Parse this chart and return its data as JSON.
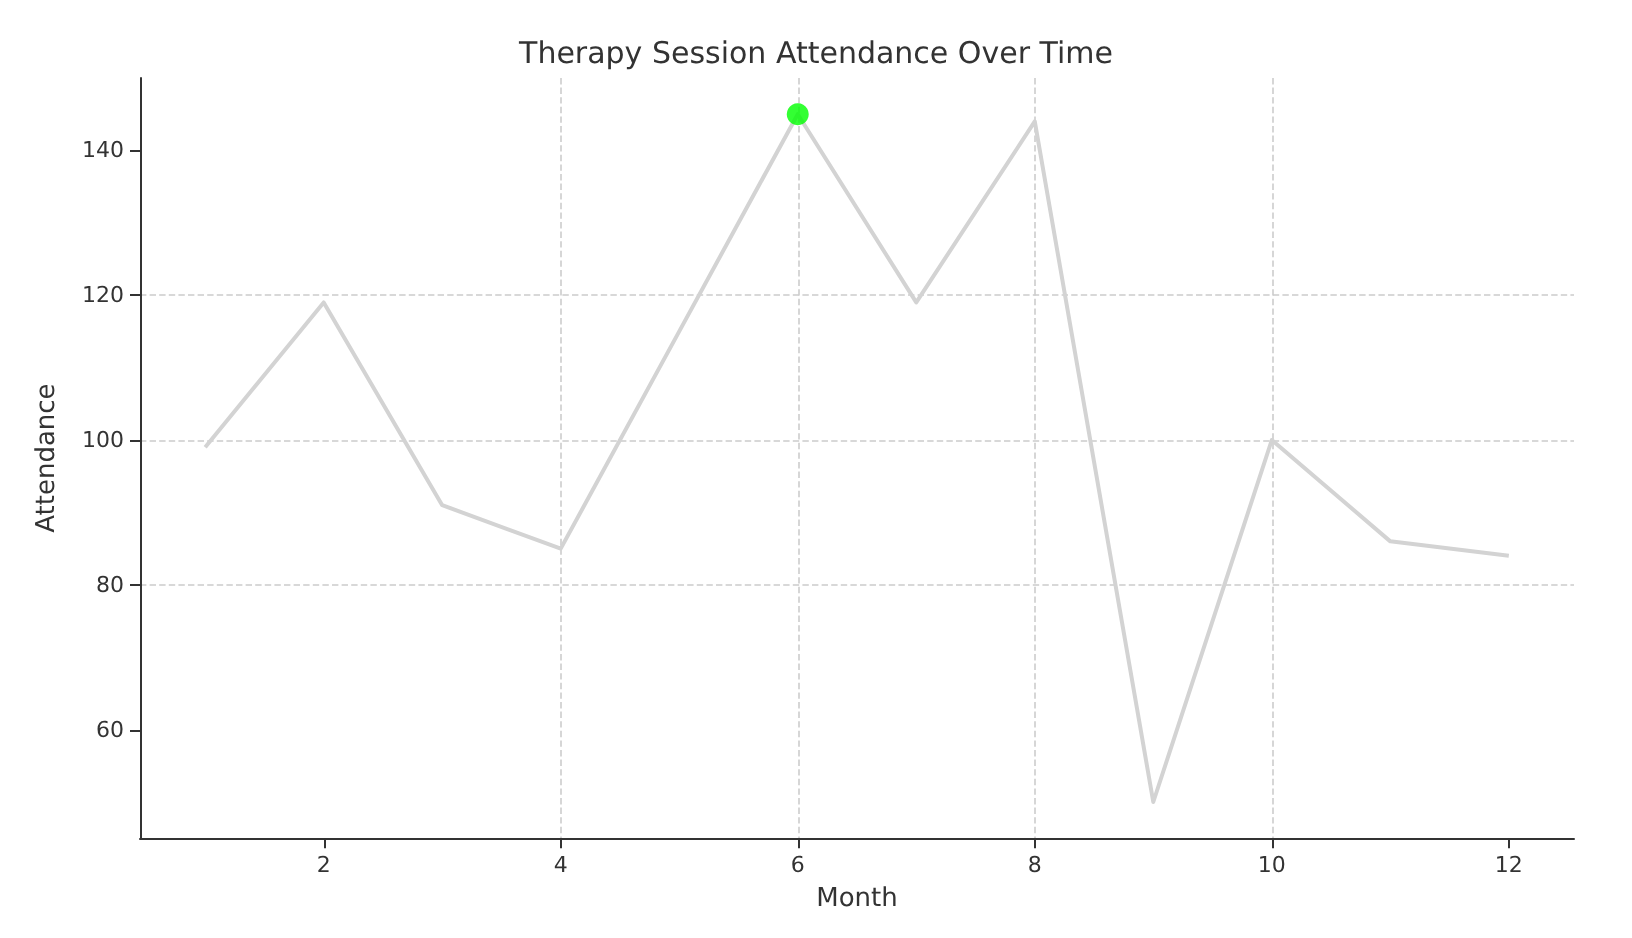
{
  "chart_data": {
    "type": "line",
    "title": "Therapy Session Attendance Over Time",
    "xlabel": "Month",
    "ylabel": "Attendance",
    "x": [
      1,
      2,
      3,
      4,
      5,
      6,
      7,
      8,
      9,
      10,
      11,
      12
    ],
    "series": [
      {
        "color": "#d3d3d3",
        "values": [
          99,
          119,
          91,
          85,
          115,
          145,
          119,
          144,
          50,
          100,
          86,
          84
        ],
        "marker": "none"
      },
      {
        "type": "scatter",
        "color": "#00ff00",
        "x": [
          6
        ],
        "values": [
          145
        ],
        "marker": "circle"
      }
    ],
    "xlim": [
      0.45,
      12.55
    ],
    "xticks": [
      2,
      4,
      6,
      8,
      10,
      12
    ],
    "ylim": [
      45,
      150
    ],
    "yticks": [
      60,
      80,
      100,
      120,
      140
    ],
    "grid": true
  }
}
